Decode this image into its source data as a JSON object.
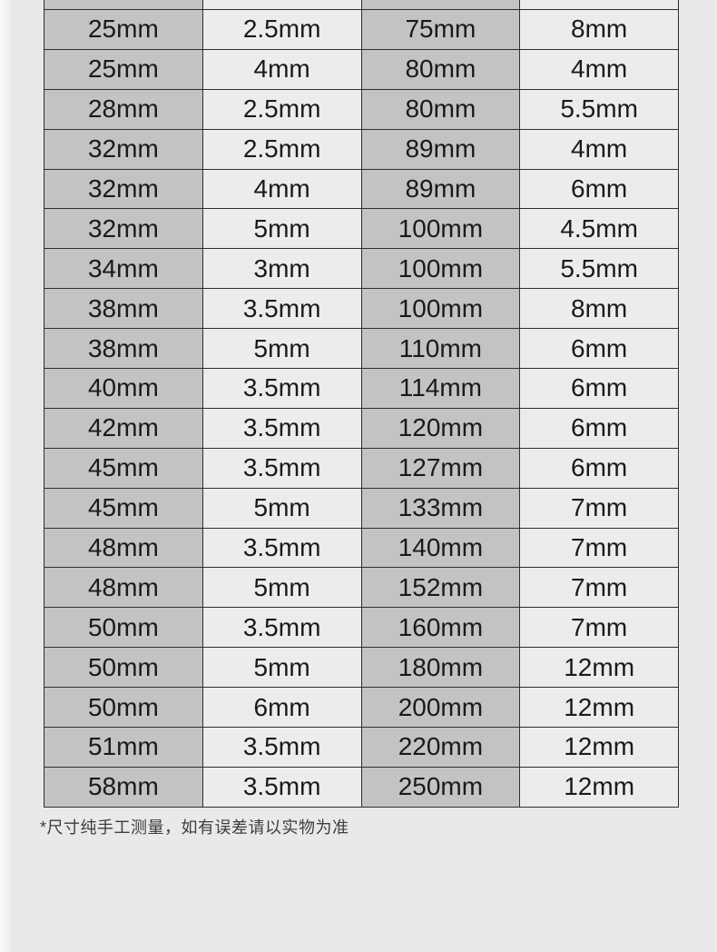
{
  "table": {
    "column_roles": [
      "diameter",
      "thickness",
      "diameter",
      "thickness"
    ],
    "unit": "mm",
    "rows": [
      [
        "25mm",
        "2.5mm",
        "75mm",
        "8mm"
      ],
      [
        "25mm",
        "4mm",
        "80mm",
        "4mm"
      ],
      [
        "28mm",
        "2.5mm",
        "80mm",
        "5.5mm"
      ],
      [
        "32mm",
        "2.5mm",
        "89mm",
        "4mm"
      ],
      [
        "32mm",
        "4mm",
        "89mm",
        "6mm"
      ],
      [
        "32mm",
        "5mm",
        "100mm",
        "4.5mm"
      ],
      [
        "34mm",
        "3mm",
        "100mm",
        "5.5mm"
      ],
      [
        "38mm",
        "3.5mm",
        "100mm",
        "8mm"
      ],
      [
        "38mm",
        "5mm",
        "110mm",
        "6mm"
      ],
      [
        "40mm",
        "3.5mm",
        "114mm",
        "6mm"
      ],
      [
        "42mm",
        "3.5mm",
        "120mm",
        "6mm"
      ],
      [
        "45mm",
        "3.5mm",
        "127mm",
        "6mm"
      ],
      [
        "45mm",
        "5mm",
        "133mm",
        "7mm"
      ],
      [
        "48mm",
        "3.5mm",
        "140mm",
        "7mm"
      ],
      [
        "48mm",
        "5mm",
        "152mm",
        "7mm"
      ],
      [
        "50mm",
        "3.5mm",
        "160mm",
        "7mm"
      ],
      [
        "50mm",
        "5mm",
        "180mm",
        "12mm"
      ],
      [
        "50mm",
        "6mm",
        "200mm",
        "12mm"
      ],
      [
        "51mm",
        "3.5mm",
        "220mm",
        "12mm"
      ],
      [
        "58mm",
        "3.5mm",
        "250mm",
        "12mm"
      ]
    ]
  },
  "footnote": "*尺寸纯手工测量，如有误差请以实物为准",
  "colors": {
    "page_bg": "#e9e9e9",
    "column_dark": "#c3c3c3",
    "column_light": "#ececec",
    "border": "#2e2e2e",
    "text": "#1a1a1a"
  }
}
